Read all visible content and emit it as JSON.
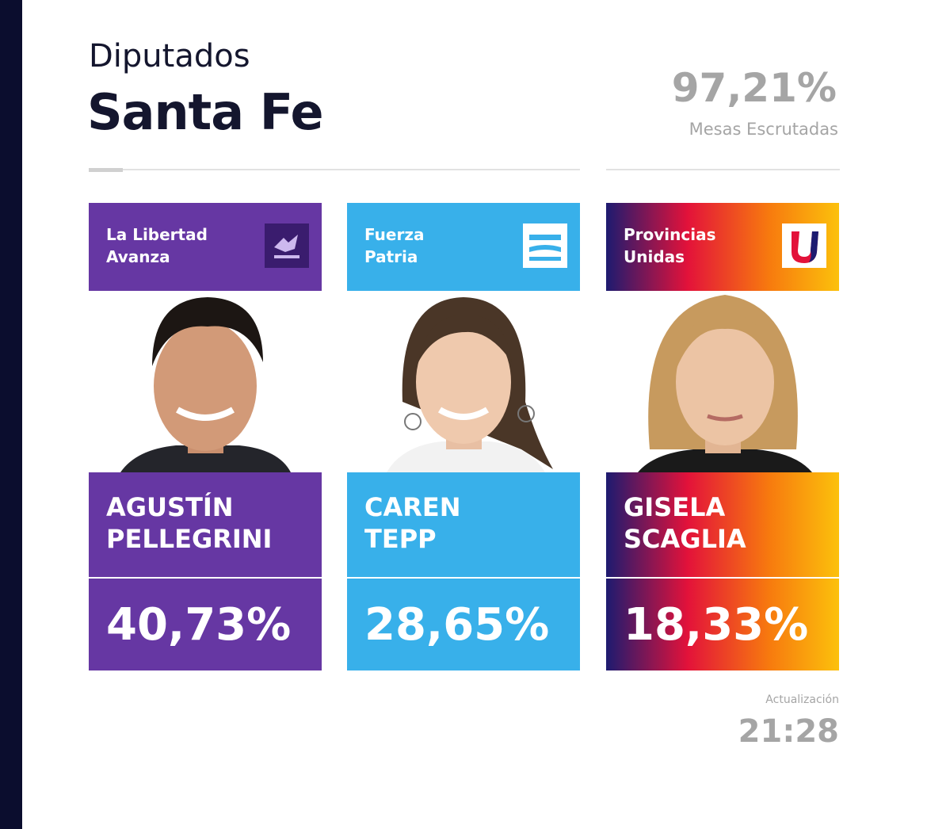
{
  "header": {
    "title": "Diputados",
    "subtitle": "Santa Fe"
  },
  "scrutiny": {
    "value": "97,21%",
    "label": "Mesas Escrutadas"
  },
  "candidates": [
    {
      "party": "La Libertad Avanza",
      "name": "AGUSTÍN PELLEGRINI",
      "result": "40,73%"
    },
    {
      "party": "Fuerza Patria",
      "name": "CAREN TEPP",
      "result": "28,65%"
    },
    {
      "party": "Provincias Unidas",
      "name": "GISELA SCAGLIA",
      "result": "18,33%"
    }
  ],
  "update": {
    "label": "Actualización",
    "time": "21:28"
  }
}
